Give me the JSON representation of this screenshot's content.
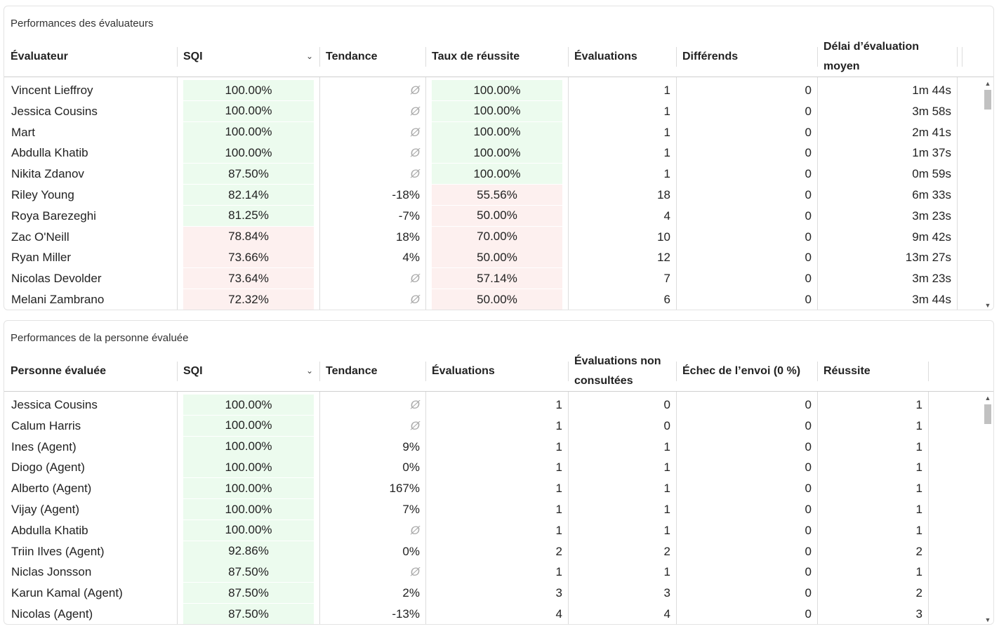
{
  "colors": {
    "good": "#ecfbee",
    "bad": "#fdf0ef"
  },
  "reviewers": {
    "title": "Performances des évaluateurs",
    "headers": [
      "Évaluateur",
      "SQI",
      "Tendance",
      "Taux de réussite",
      "Évaluations",
      "Différends",
      "Délai d’évaluation moyen"
    ],
    "sort_icon": "chevron-down-icon",
    "rows": [
      {
        "name": "Vincent Lieffroy",
        "sqi": "100.00%",
        "sqi_status": "good",
        "trend": "Ø",
        "rate": "100.00%",
        "rate_status": "good",
        "evals": "1",
        "disputes": "0",
        "delay": "1m 44s"
      },
      {
        "name": "Jessica Cousins",
        "sqi": "100.00%",
        "sqi_status": "good",
        "trend": "Ø",
        "rate": "100.00%",
        "rate_status": "good",
        "evals": "1",
        "disputes": "0",
        "delay": "3m 58s"
      },
      {
        "name": "Mart",
        "sqi": "100.00%",
        "sqi_status": "good",
        "trend": "Ø",
        "rate": "100.00%",
        "rate_status": "good",
        "evals": "1",
        "disputes": "0",
        "delay": "2m 41s"
      },
      {
        "name": "Abdulla Khatib",
        "sqi": "100.00%",
        "sqi_status": "good",
        "trend": "Ø",
        "rate": "100.00%",
        "rate_status": "good",
        "evals": "1",
        "disputes": "0",
        "delay": "1m 37s"
      },
      {
        "name": "Nikita Zdanov",
        "sqi": "87.50%",
        "sqi_status": "good",
        "trend": "Ø",
        "rate": "100.00%",
        "rate_status": "good",
        "evals": "1",
        "disputes": "0",
        "delay": "0m 59s"
      },
      {
        "name": "Riley Young",
        "sqi": "82.14%",
        "sqi_status": "good",
        "trend": "-18%",
        "rate": "55.56%",
        "rate_status": "bad",
        "evals": "18",
        "disputes": "0",
        "delay": "6m 33s"
      },
      {
        "name": "Roya Barezeghi",
        "sqi": "81.25%",
        "sqi_status": "good",
        "trend": "-7%",
        "rate": "50.00%",
        "rate_status": "bad",
        "evals": "4",
        "disputes": "0",
        "delay": "3m 23s"
      },
      {
        "name": "Zac O'Neill",
        "sqi": "78.84%",
        "sqi_status": "bad",
        "trend": "18%",
        "rate": "70.00%",
        "rate_status": "bad",
        "evals": "10",
        "disputes": "0",
        "delay": "9m 42s"
      },
      {
        "name": "Ryan Miller",
        "sqi": "73.66%",
        "sqi_status": "bad",
        "trend": "4%",
        "rate": "50.00%",
        "rate_status": "bad",
        "evals": "12",
        "disputes": "0",
        "delay": "13m 27s"
      },
      {
        "name": "Nicolas Devolder",
        "sqi": "73.64%",
        "sqi_status": "bad",
        "trend": "Ø",
        "rate": "57.14%",
        "rate_status": "bad",
        "evals": "7",
        "disputes": "0",
        "delay": "3m 23s"
      },
      {
        "name": "Melani Zambrano",
        "sqi": "72.32%",
        "sqi_status": "bad",
        "trend": "Ø",
        "rate": "50.00%",
        "rate_status": "bad",
        "evals": "6",
        "disputes": "0",
        "delay": "3m 44s"
      }
    ]
  },
  "reviewees": {
    "title": "Performances de la personne évaluée",
    "headers": [
      "Personne évaluée",
      "SQI",
      "Tendance",
      "Évaluations",
      "Évaluations non consultées",
      "Échec de l’envoi (0 %)",
      "Réussite"
    ],
    "sort_icon": "chevron-down-icon",
    "rows": [
      {
        "name": "Jessica Cousins",
        "sqi": "100.00%",
        "sqi_status": "good",
        "trend": "Ø",
        "evals": "1",
        "unseen": "0",
        "failed": "0",
        "success": "1"
      },
      {
        "name": "Calum Harris",
        "sqi": "100.00%",
        "sqi_status": "good",
        "trend": "Ø",
        "evals": "1",
        "unseen": "0",
        "failed": "0",
        "success": "1"
      },
      {
        "name": "Ines (Agent)",
        "sqi": "100.00%",
        "sqi_status": "good",
        "trend": "9%",
        "evals": "1",
        "unseen": "1",
        "failed": "0",
        "success": "1"
      },
      {
        "name": "Diogo (Agent)",
        "sqi": "100.00%",
        "sqi_status": "good",
        "trend": "0%",
        "evals": "1",
        "unseen": "1",
        "failed": "0",
        "success": "1"
      },
      {
        "name": "Alberto (Agent)",
        "sqi": "100.00%",
        "sqi_status": "good",
        "trend": "167%",
        "evals": "1",
        "unseen": "1",
        "failed": "0",
        "success": "1"
      },
      {
        "name": "Vijay (Agent)",
        "sqi": "100.00%",
        "sqi_status": "good",
        "trend": "7%",
        "evals": "1",
        "unseen": "1",
        "failed": "0",
        "success": "1"
      },
      {
        "name": "Abdulla Khatib",
        "sqi": "100.00%",
        "sqi_status": "good",
        "trend": "Ø",
        "evals": "1",
        "unseen": "1",
        "failed": "0",
        "success": "1"
      },
      {
        "name": "Triin Ilves (Agent)",
        "sqi": "92.86%",
        "sqi_status": "good",
        "trend": "0%",
        "evals": "2",
        "unseen": "2",
        "failed": "0",
        "success": "2"
      },
      {
        "name": "Niclas Jonsson",
        "sqi": "87.50%",
        "sqi_status": "good",
        "trend": "Ø",
        "evals": "1",
        "unseen": "1",
        "failed": "0",
        "success": "1"
      },
      {
        "name": "Karun Kamal (Agent)",
        "sqi": "87.50%",
        "sqi_status": "good",
        "trend": "2%",
        "evals": "3",
        "unseen": "3",
        "failed": "0",
        "success": "2"
      },
      {
        "name": "Nicolas (Agent)",
        "sqi": "87.50%",
        "sqi_status": "good",
        "trend": "-13%",
        "evals": "4",
        "unseen": "4",
        "failed": "0",
        "success": "3"
      }
    ]
  }
}
